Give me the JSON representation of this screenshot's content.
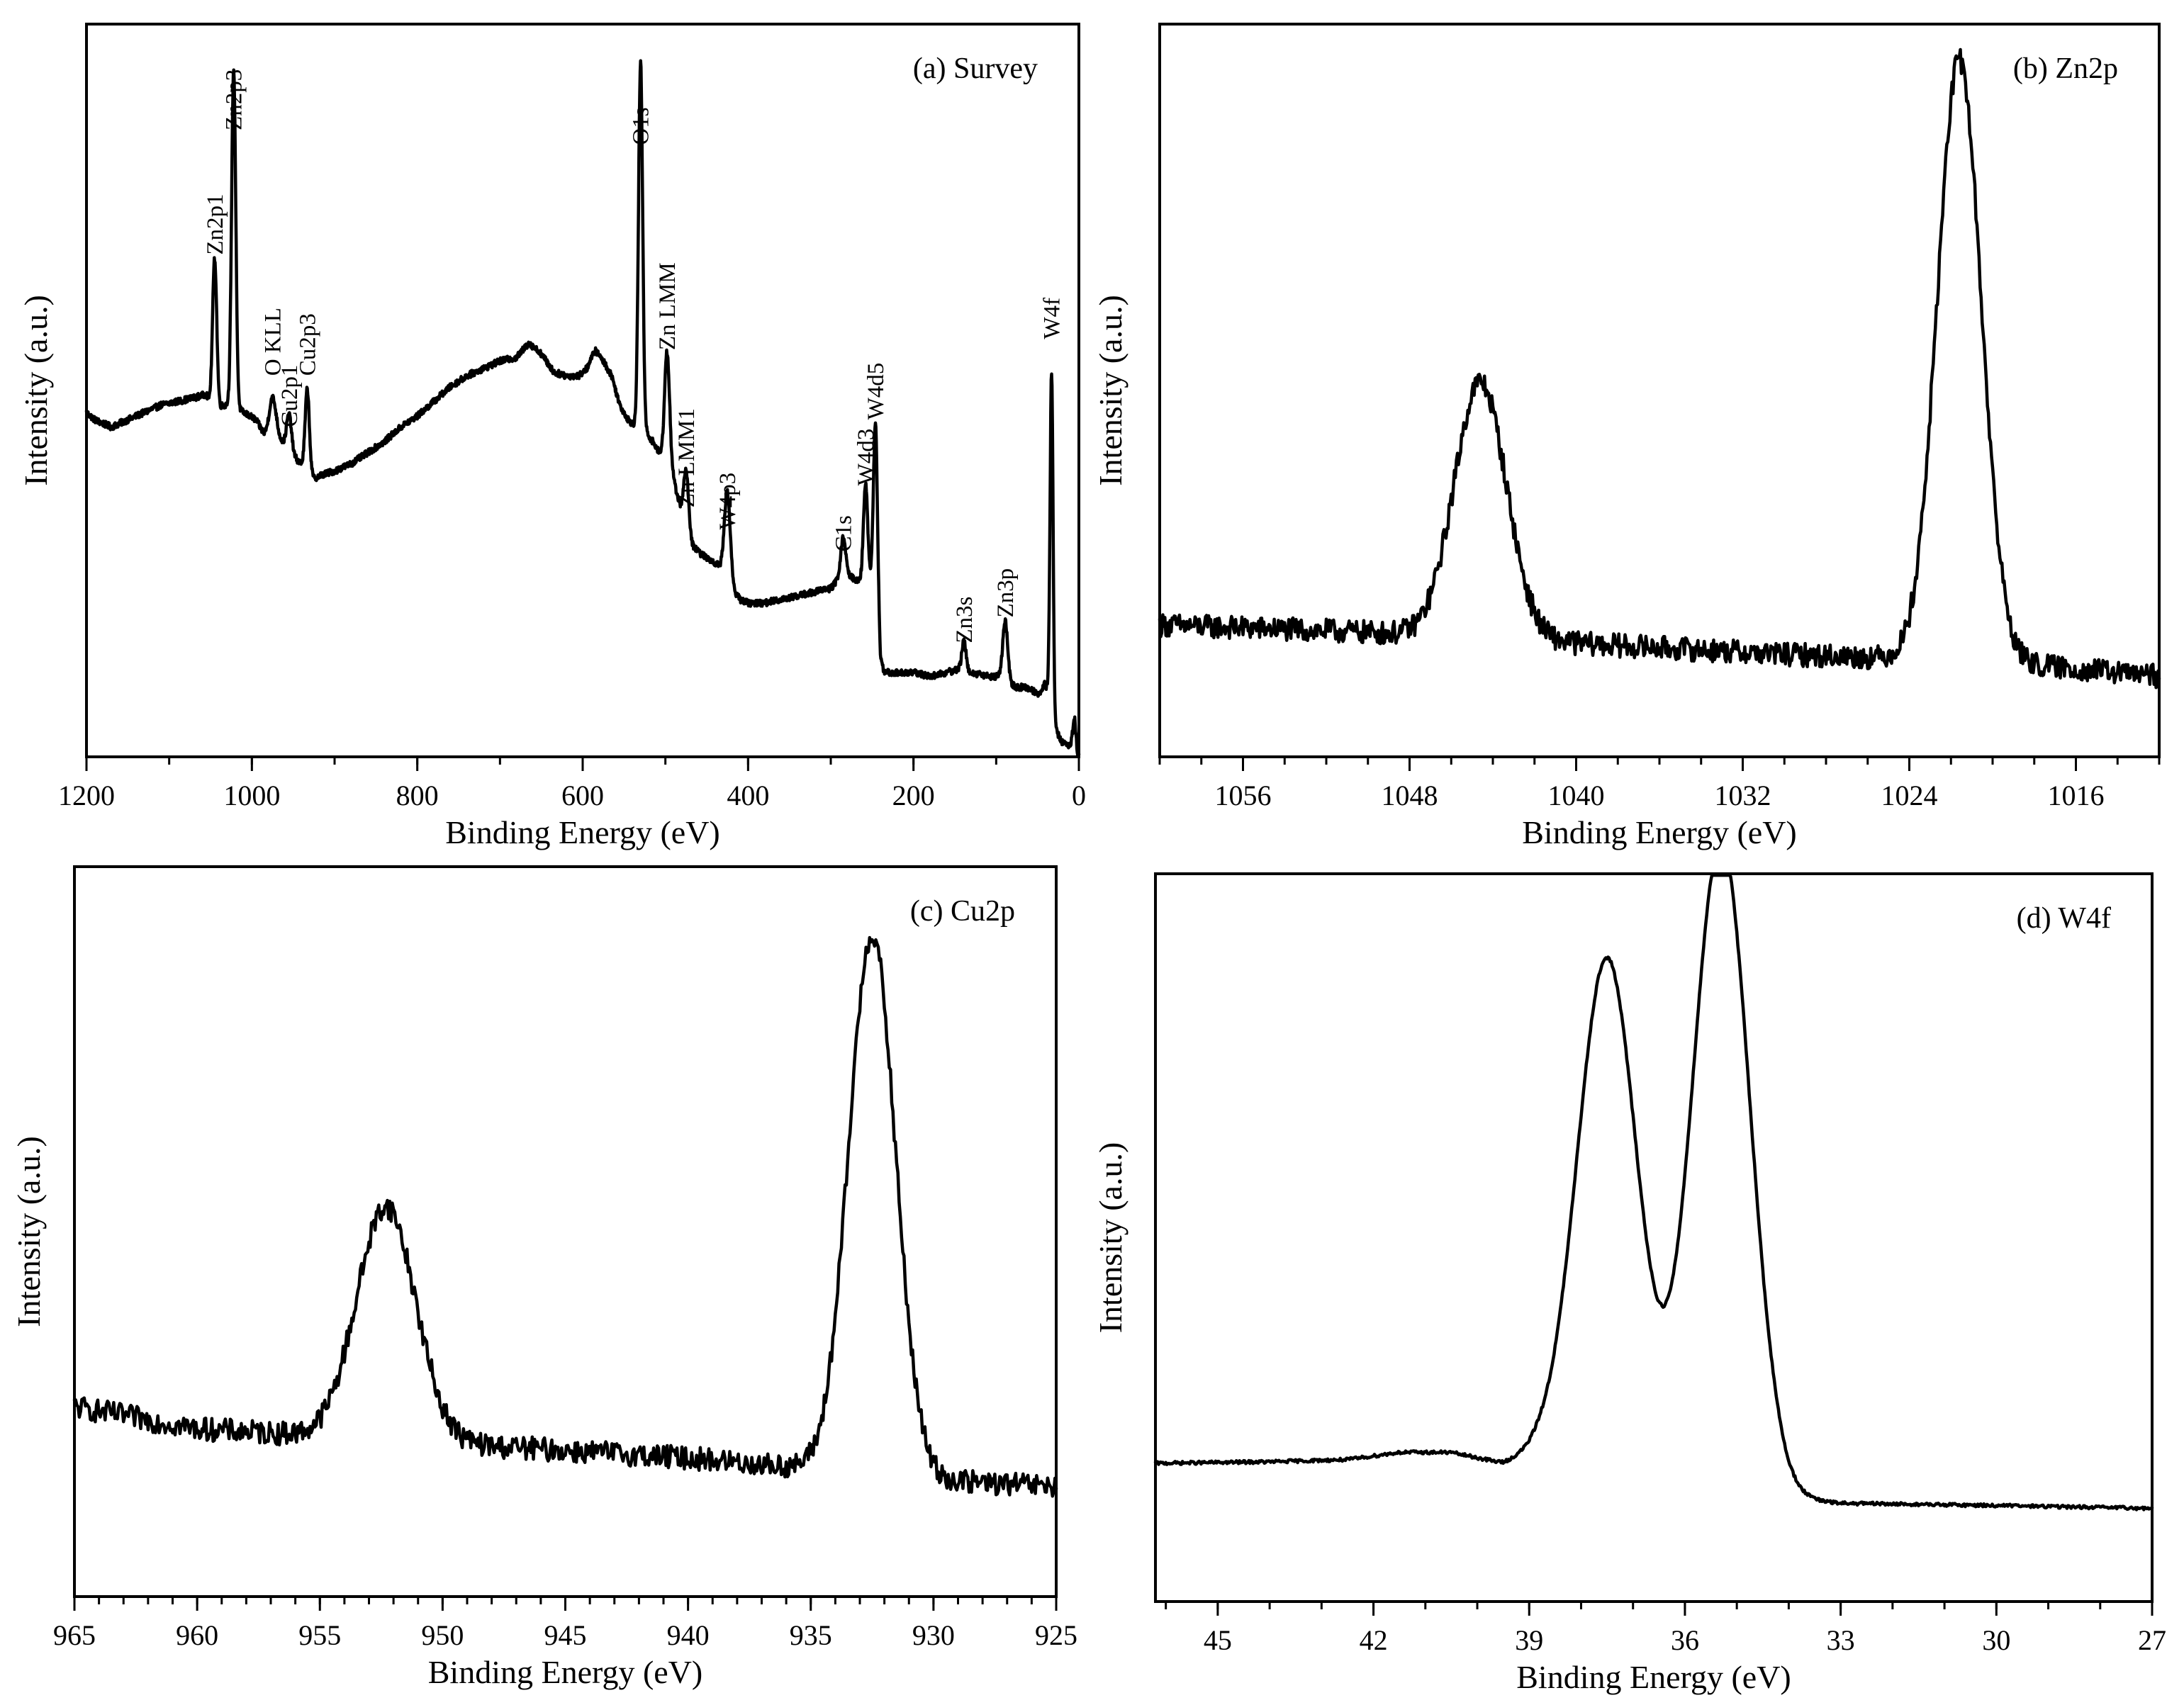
{
  "figure": {
    "panel_count": 4
  },
  "chart_data": [
    {
      "id": "a",
      "type": "line",
      "title": "(a) Survey",
      "xlabel": "Binding Energy (eV)",
      "ylabel": "Intensity (a.u.)",
      "xlim": [
        1200,
        0
      ],
      "ylim": [
        0,
        100
      ],
      "x_reversed": true,
      "x_ticks": [
        1200,
        1000,
        800,
        600,
        400,
        200,
        0
      ],
      "x_tick_labels": [
        "1200",
        "1000",
        "800",
        "600",
        "400",
        "200",
        "0"
      ],
      "x_minor_step": 100,
      "y_ticks_shown": false,
      "series": [
        {
          "name": "Survey",
          "baseline": [
            [
              1200,
              47
            ],
            [
              1190,
              46
            ],
            [
              1170,
              45
            ],
            [
              1150,
              46
            ],
            [
              1130,
              47
            ],
            [
              1110,
              48
            ],
            [
              1090,
              48.5
            ],
            [
              1070,
              49
            ],
            [
              1055,
              49.5
            ],
            [
              1045,
              47
            ],
            [
              1035,
              48
            ],
            [
              1025,
              48
            ],
            [
              1010,
              47
            ],
            [
              995,
              46
            ],
            [
              985,
              44
            ],
            [
              970,
              44
            ],
            [
              960,
              42.5
            ],
            [
              950,
              41
            ],
            [
              935,
              39.5
            ],
            [
              925,
              38
            ],
            [
              915,
              38.5
            ],
            [
              900,
              39
            ],
            [
              880,
              40
            ],
            [
              860,
              41.5
            ],
            [
              840,
              43
            ],
            [
              820,
              45
            ],
            [
              800,
              46.5
            ],
            [
              780,
              48.5
            ],
            [
              760,
              50.5
            ],
            [
              740,
              52
            ],
            [
              720,
              53
            ],
            [
              700,
              54
            ],
            [
              680,
              54.5
            ],
            [
              665,
              56.5
            ],
            [
              650,
              55
            ],
            [
              635,
              52.5
            ],
            [
              620,
              52
            ],
            [
              605,
              52
            ],
            [
              595,
              53
            ],
            [
              585,
              55.5
            ],
            [
              575,
              54
            ],
            [
              565,
              52
            ],
            [
              555,
              48
            ],
            [
              545,
              46
            ],
            [
              535,
              45
            ],
            [
              525,
              44.5
            ],
            [
              515,
              43
            ],
            [
              505,
              41
            ],
            [
              495,
              40
            ],
            [
              485,
              35.5
            ],
            [
              475,
              30
            ],
            [
              465,
              28.5
            ],
            [
              455,
              27.5
            ],
            [
              440,
              26.5
            ],
            [
              430,
              25.5
            ],
            [
              420,
              23
            ],
            [
              410,
              21.5
            ],
            [
              400,
              21
            ],
            [
              380,
              21
            ],
            [
              360,
              21.5
            ],
            [
              340,
              22
            ],
            [
              320,
              22.5
            ],
            [
              300,
              23
            ],
            [
              285,
              25
            ],
            [
              275,
              24.5
            ],
            [
              265,
              24
            ],
            [
              255,
              24.5
            ],
            [
              245,
              22
            ],
            [
              240,
              13
            ],
            [
              235,
              11.5
            ],
            [
              220,
              11.5
            ],
            [
              200,
              11.5
            ],
            [
              180,
              11
            ],
            [
              160,
              11.5
            ],
            [
              145,
              12
            ],
            [
              130,
              11.5
            ],
            [
              110,
              11
            ],
            [
              95,
              11
            ],
            [
              85,
              10
            ],
            [
              75,
              9.5
            ],
            [
              65,
              9.5
            ],
            [
              55,
              9
            ],
            [
              48,
              8.5
            ],
            [
              42,
              10
            ],
            [
              36,
              9
            ],
            [
              30,
              4
            ],
            [
              20,
              2
            ],
            [
              10,
              1.5
            ],
            [
              5,
              5.5
            ],
            [
              2,
              0.5
            ]
          ],
          "peaks": [
            {
              "label": "Zn2p1",
              "center": 1045,
              "height": 21,
              "width": 2.5
            },
            {
              "label": "Zn2p3",
              "center": 1022,
              "height": 46,
              "width": 2.5
            },
            {
              "label": "O KLL",
              "center": 975,
              "height": 5,
              "width": 4
            },
            {
              "label": "Cu2p1",
              "center": 955,
              "height": 5,
              "width": 3
            },
            {
              "label": "Cu2p3",
              "center": 933,
              "height": 11,
              "width": 2.5
            },
            {
              "label": "O1s",
              "center": 530,
              "height": 50,
              "width": 2.5
            },
            {
              "label": "Zn LMM",
              "center": 498,
              "height": 15,
              "width": 3
            },
            {
              "label": "Zn LMM1",
              "center": 475,
              "height": 9,
              "width": 3
            },
            {
              "label": "W4p3",
              "center": 425,
              "height": 12,
              "width": 3.5
            },
            {
              "label": "C1s",
              "center": 285,
              "height": 5,
              "width": 3
            },
            {
              "label": "W4d3",
              "center": 258,
              "height": 13,
              "width": 2.5
            },
            {
              "label": "W4d5",
              "center": 246,
              "height": 23,
              "width": 2.5
            },
            {
              "label": "Zn3s",
              "center": 139,
              "height": 4,
              "width": 2.5
            },
            {
              "label": "Zn3p",
              "center": 89,
              "height": 8,
              "width": 3
            },
            {
              "label": "W4f",
              "center": 33,
              "height": 46,
              "width": 1.8
            }
          ],
          "noise": 0.45
        }
      ],
      "annotations": [
        {
          "text": "Zn2p1",
          "x": 1045,
          "y": 68.5
        },
        {
          "text": "Zn2p3",
          "x": 1022,
          "y": 85.5
        },
        {
          "text": "O KLL",
          "x": 975,
          "y": 52
        },
        {
          "text": "Cu2p1",
          "x": 955,
          "y": 45
        },
        {
          "text": "Cu2p3",
          "x": 933,
          "y": 52
        },
        {
          "text": "O1s",
          "x": 530,
          "y": 83.5
        },
        {
          "text": "Zn LMM",
          "x": 498,
          "y": 55.5
        },
        {
          "text": "Zn LMM1",
          "x": 475,
          "y": 34
        },
        {
          "text": "W4p3",
          "x": 425,
          "y": 31
        },
        {
          "text": "C1s",
          "x": 285,
          "y": 28
        },
        {
          "text": "W4d3",
          "x": 258,
          "y": 37
        },
        {
          "text": "W4d5",
          "x": 246,
          "y": 46
        },
        {
          "text": "Zn3s",
          "x": 139,
          "y": 15.5
        },
        {
          "text": "Zn3p",
          "x": 89,
          "y": 19
        },
        {
          "text": "W4f",
          "x": 33,
          "y": 57
        }
      ]
    },
    {
      "id": "b",
      "type": "line",
      "title": "(b) Zn2p",
      "xlabel": "Binding Energy (eV)",
      "ylabel": "Intensity (a.u.)",
      "xlim": [
        1060,
        1012
      ],
      "ylim": [
        0,
        100
      ],
      "x_reversed": true,
      "x_ticks": [
        1056,
        1048,
        1040,
        1032,
        1024,
        1016
      ],
      "x_tick_labels": [
        "1056",
        "1048",
        "1040",
        "1032",
        "1024",
        "1016"
      ],
      "x_minor_step": 2,
      "y_ticks_shown": false,
      "series": [
        {
          "name": "Zn2p",
          "baseline": [
            [
              1060,
              18
            ],
            [
              1050,
              17
            ],
            [
              1040,
              15.5
            ],
            [
              1030,
              14
            ],
            [
              1020,
              13
            ],
            [
              1012,
              11
            ]
          ],
          "peaks": [
            {
              "center": 1044.6,
              "height": 35,
              "width": 1.25
            },
            {
              "center": 1021.6,
              "height": 82,
              "width": 1.05
            }
          ],
          "noise": 1.6
        }
      ]
    },
    {
      "id": "c",
      "type": "line",
      "title": "(c) Cu2p",
      "xlabel": "Binding Energy (eV)",
      "ylabel": "Intensity (a.u.)",
      "xlim": [
        965,
        925
      ],
      "ylim": [
        0,
        100
      ],
      "x_reversed": true,
      "x_ticks": [
        965,
        960,
        955,
        950,
        945,
        940,
        935,
        930,
        925
      ],
      "x_tick_labels": [
        "965",
        "960",
        "955",
        "950",
        "945",
        "940",
        "935",
        "930",
        "925"
      ],
      "x_minor_step": 1,
      "y_ticks_shown": false,
      "series": [
        {
          "name": "Cu2p",
          "baseline": [
            [
              965,
              26
            ],
            [
              960,
              23
            ],
            [
              955,
              22
            ],
            [
              950,
              21
            ],
            [
              945,
              20
            ],
            [
              940,
              19
            ],
            [
              935,
              17.5
            ],
            [
              930,
              16
            ],
            [
              925,
              15
            ]
          ],
          "peaks": [
            {
              "center": 952.3,
              "height": 32,
              "width": 1.2
            },
            {
              "center": 932.5,
              "height": 74,
              "width": 0.95
            }
          ],
          "noise": 1.6
        }
      ]
    },
    {
      "id": "d",
      "type": "line",
      "title": "(d) W4f",
      "xlabel": "Binding Energy (eV)",
      "ylabel": "Intensity (a.u.)",
      "xlim": [
        46.2,
        27
      ],
      "ylim": [
        0,
        100
      ],
      "x_reversed": true,
      "x_ticks": [
        45,
        42,
        39,
        36,
        33,
        30,
        27
      ],
      "x_tick_labels": [
        "45",
        "42",
        "39",
        "36",
        "33",
        "30",
        "27"
      ],
      "x_minor_step": 1,
      "y_ticks_shown": false,
      "series": [
        {
          "name": "W4f",
          "baseline": [
            [
              46.2,
              19
            ],
            [
              44,
              19.2
            ],
            [
              42.5,
              19.5
            ],
            [
              41.5,
              20.5
            ],
            [
              40.5,
              20.5
            ],
            [
              39.5,
              19
            ],
            [
              38.8,
              20.5
            ],
            [
              37,
              19
            ],
            [
              35,
              16
            ],
            [
              34,
              14
            ],
            [
              33,
              13.5
            ],
            [
              30,
              13.2
            ],
            [
              27,
              12.8
            ]
          ],
          "peaks": [
            {
              "center": 37.5,
              "height": 69,
              "width": 0.57
            },
            {
              "center": 35.3,
              "height": 88,
              "width": 0.55
            }
          ],
          "noise": 0.22
        }
      ]
    }
  ]
}
